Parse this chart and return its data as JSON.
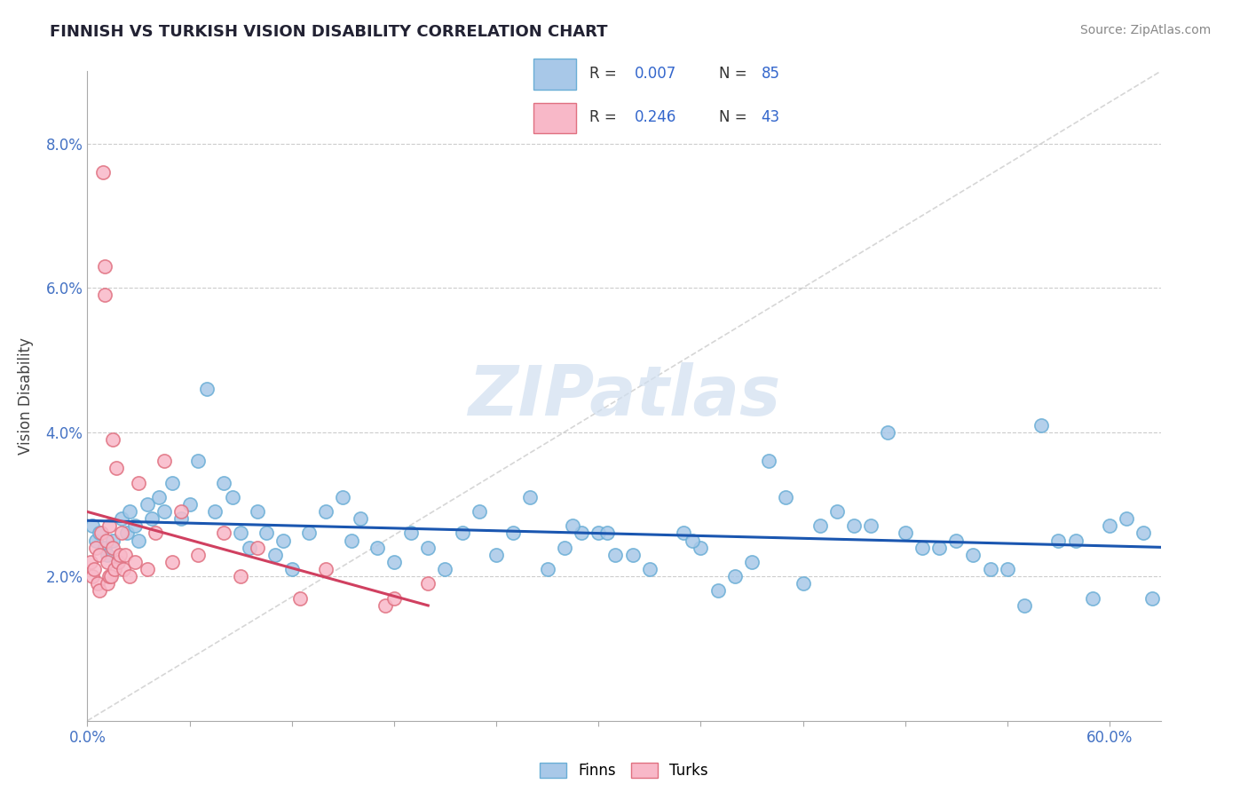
{
  "title": "FINNISH VS TURKISH VISION DISABILITY CORRELATION CHART",
  "source": "Source: ZipAtlas.com",
  "ylabel": "Vision Disability",
  "xlim": [
    0.0,
    63.0
  ],
  "ylim": [
    0.0,
    9.0
  ],
  "finns_color": "#a8c8e8",
  "finns_edge_color": "#6aaed6",
  "turks_color": "#f8b8c8",
  "turks_edge_color": "#e07080",
  "regression_finn_color": "#1a56b0",
  "regression_turk_color": "#d04060",
  "background_color": "#ffffff",
  "grid_color": "#cccccc",
  "title_color": "#222233",
  "tick_color": "#4472c4",
  "watermark_color": "#d0dff0",
  "diagonal_color": "#cccccc",
  "legend_box_color": "#aabbcc",
  "r_n_color": "#3366cc",
  "finns_x": [
    0.3,
    0.5,
    0.7,
    1.0,
    1.2,
    1.5,
    1.8,
    2.0,
    2.3,
    2.5,
    2.8,
    3.0,
    3.5,
    3.8,
    4.2,
    4.5,
    5.0,
    5.5,
    6.0,
    6.5,
    7.0,
    7.5,
    8.0,
    8.5,
    9.0,
    9.5,
    10.0,
    10.5,
    11.0,
    11.5,
    12.0,
    13.0,
    14.0,
    15.0,
    16.0,
    17.0,
    18.0,
    19.0,
    20.0,
    21.0,
    22.0,
    23.0,
    24.0,
    25.0,
    26.0,
    27.0,
    28.0,
    29.0,
    30.0,
    31.0,
    32.0,
    33.0,
    35.0,
    36.0,
    37.0,
    38.0,
    39.0,
    40.0,
    41.0,
    42.0,
    44.0,
    45.0,
    46.0,
    48.0,
    49.0,
    50.0,
    52.0,
    53.0,
    54.0,
    55.0,
    56.0,
    57.0,
    58.0,
    59.0,
    60.0,
    61.0,
    62.0,
    43.0,
    28.5,
    51.0,
    30.5,
    15.5,
    35.5,
    47.0,
    62.5
  ],
  "finns_y": [
    2.7,
    2.5,
    2.6,
    2.4,
    2.3,
    2.5,
    2.2,
    2.8,
    2.6,
    2.9,
    2.7,
    2.5,
    3.0,
    2.8,
    3.1,
    2.9,
    3.3,
    2.8,
    3.0,
    3.6,
    4.6,
    2.9,
    3.3,
    3.1,
    2.6,
    2.4,
    2.9,
    2.6,
    2.3,
    2.5,
    2.1,
    2.6,
    2.9,
    3.1,
    2.8,
    2.4,
    2.2,
    2.6,
    2.4,
    2.1,
    2.6,
    2.9,
    2.3,
    2.6,
    3.1,
    2.1,
    2.4,
    2.6,
    2.6,
    2.3,
    2.3,
    2.1,
    2.6,
    2.4,
    1.8,
    2.0,
    2.2,
    3.6,
    3.1,
    1.9,
    2.9,
    2.7,
    2.7,
    2.6,
    2.4,
    2.4,
    2.3,
    2.1,
    2.1,
    1.6,
    4.1,
    2.5,
    2.5,
    1.7,
    2.7,
    2.8,
    2.6,
    2.7,
    2.7,
    2.5,
    2.6,
    2.5,
    2.5,
    4.0,
    1.7
  ],
  "turks_x": [
    0.2,
    0.3,
    0.4,
    0.5,
    0.6,
    0.7,
    0.7,
    0.8,
    0.9,
    1.0,
    1.0,
    1.1,
    1.2,
    1.2,
    1.3,
    1.3,
    1.4,
    1.5,
    1.5,
    1.6,
    1.7,
    1.8,
    1.9,
    2.0,
    2.1,
    2.2,
    2.5,
    2.8,
    3.0,
    3.5,
    4.0,
    4.5,
    5.0,
    5.5,
    6.5,
    8.0,
    9.0,
    10.0,
    12.5,
    14.0,
    17.5,
    18.0,
    20.0
  ],
  "turks_y": [
    2.2,
    2.0,
    2.1,
    2.4,
    1.9,
    2.3,
    1.8,
    2.6,
    7.6,
    6.3,
    5.9,
    2.5,
    2.2,
    1.9,
    2.7,
    2.0,
    2.0,
    2.4,
    3.9,
    2.1,
    3.5,
    2.2,
    2.3,
    2.6,
    2.1,
    2.3,
    2.0,
    2.2,
    3.3,
    2.1,
    2.6,
    3.6,
    2.2,
    2.9,
    2.3,
    2.6,
    2.0,
    2.4,
    1.7,
    2.1,
    1.6,
    1.7,
    1.9
  ]
}
